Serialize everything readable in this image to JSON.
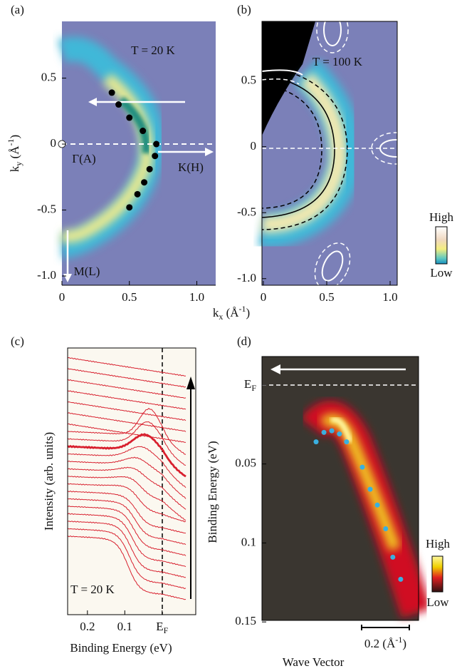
{
  "chart_data": [
    {
      "type": "scatter",
      "panel_label": "(a)",
      "ylabel": "k_{y} (Å^{-1})",
      "annotations": [
        "T = 20 K",
        "Γ(A)",
        "K(H)",
        "M(L)"
      ],
      "xlim": [
        0,
        1.14
      ],
      "ylim": [
        -1.07,
        0.93
      ],
      "xticks": [
        0,
        0.5,
        {
          "value": 1,
          "label": "1.0"
        }
      ],
      "yticks": [
        {
          "value": -1,
          "label": "-1.0"
        },
        -0.5,
        0,
        0.5
      ],
      "x": [
        0.37,
        0.42,
        0.5,
        0.6,
        0.7,
        0.69,
        0.65,
        0.61,
        0.56,
        0.5
      ],
      "y": [
        0.39,
        0.3,
        0.2,
        0.1,
        0.0,
        -0.09,
        -0.19,
        -0.29,
        -0.38,
        -0.48
      ],
      "color": "#000000"
    },
    {
      "type": "contour",
      "panel_label": "(b)",
      "xlabel": "k_{x} (Å^{-1})",
      "annotations": [
        "T = 100 K"
      ],
      "colorbar_labels": [
        "High",
        "Low"
      ],
      "xlim": [
        -0.011,
        1.056
      ],
      "ylim": [
        -1.05,
        0.95
      ],
      "xticks": [
        0,
        0.5,
        {
          "value": 1,
          "label": "1.0"
        }
      ],
      "yticks": [
        {
          "value": -1,
          "label": "-1.0"
        },
        -0.5,
        0,
        0.5
      ]
    },
    {
      "type": "line",
      "panel_label": "(c)",
      "xlabel": "Binding Energy (eV)",
      "ylabel": "Intensity (arb. units)",
      "annotations": [
        "T = 20 K"
      ],
      "xlim": [
        0.253,
        -0.09
      ],
      "xticks": [
        0.2,
        0.1,
        {
          "value": 0,
          "label": "E_{F}"
        }
      ]
    },
    {
      "type": "scatter",
      "panel_label": "(d)",
      "xlabel": "Wave Vector",
      "ylabel": "Binding Energy (eV)",
      "colorbar_labels": [
        "High",
        "Low"
      ],
      "xlim": [
        0,
        0.657
      ],
      "ylim": [
        -0.018,
        0.149
      ],
      "yticks": [
        {
          "value": 0,
          "label": "E_{F}"
        },
        0.05,
        0.1,
        0.15
      ],
      "x": [
        0.227,
        0.26,
        0.293,
        0.325,
        0.355,
        0.421,
        0.454,
        0.484,
        0.519,
        0.549,
        0.582
      ],
      "y": [
        0.036,
        0.03,
        0.029,
        0.031,
        0.036,
        0.052,
        0.066,
        0.076,
        0.091,
        0.109,
        0.123
      ],
      "color": "#3ab0e0",
      "scale_bar": {
        "value": 0.2,
        "label": "0.2 (Å^{-1})"
      }
    }
  ]
}
